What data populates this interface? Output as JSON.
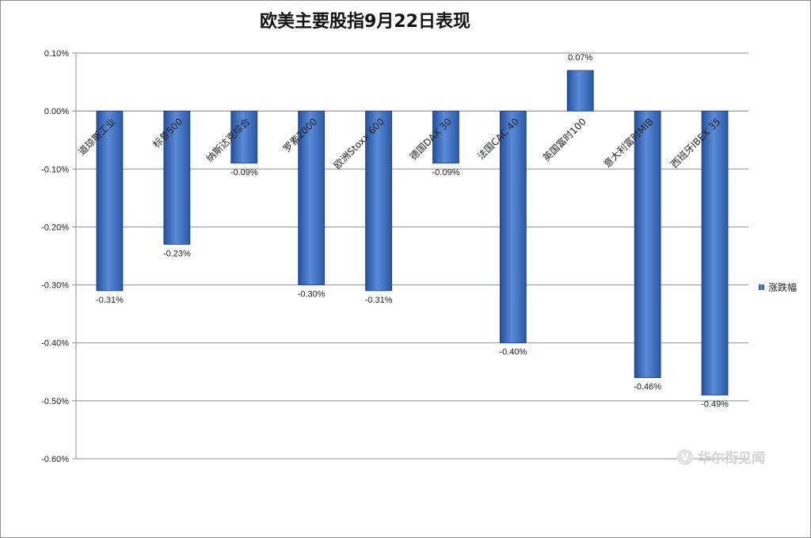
{
  "chart_data": {
    "type": "bar",
    "title": "欧美主要股指9月22日表现",
    "categories": [
      "道琼斯工业",
      "标普500",
      "纳斯达克综合",
      "罗素2000",
      "欧洲Stoxx 600",
      "德国DAX 30",
      "法国CAC 40",
      "英国富时100",
      "意大利富时MIB",
      "西班牙IBEX 35"
    ],
    "series": [
      {
        "name": "涨跌幅",
        "values": [
          -0.31,
          -0.23,
          -0.09,
          -0.3,
          -0.31,
          -0.09,
          -0.4,
          0.07,
          -0.46,
          -0.49
        ],
        "labels": [
          "-0.31%",
          "-0.23%",
          "-0.09%",
          "-0.30%",
          "-0.31%",
          "-0.09%",
          "-0.40%",
          "0.07%",
          "-0.46%",
          "-0.49%"
        ]
      }
    ],
    "ylim": [
      -0.6,
      0.1
    ],
    "yticks": [
      0.1,
      0.0,
      -0.1,
      -0.2,
      -0.3,
      -0.4,
      -0.5,
      -0.6
    ],
    "ytick_labels": [
      "0.10%",
      "0.00%",
      "-0.10%",
      "-0.20%",
      "-0.30%",
      "-0.40%",
      "-0.50%",
      "-0.60%"
    ],
    "xlabel": "",
    "ylabel": "",
    "grid": true,
    "legend_position": "right",
    "bar_color": "#3a6cc0"
  },
  "watermark": {
    "logo_glyph": "V",
    "text": "华尔街见闻"
  }
}
